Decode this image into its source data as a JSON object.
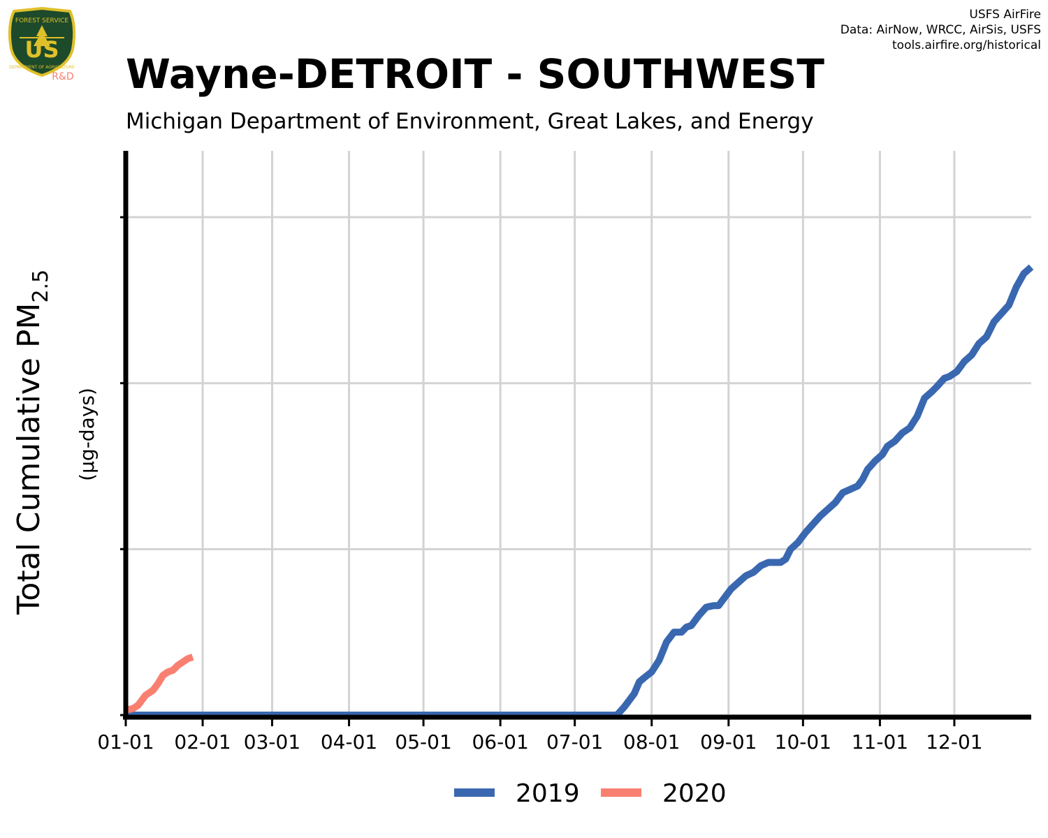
{
  "header": {
    "title": "Wayne-DETROIT - SOUTHWEST",
    "subtitle": "Michigan Department of Environment, Great Lakes, and Energy",
    "credits": [
      "USFS AirFire",
      "Data: AirNow, WRCC, AirSis, USFS",
      "tools.airfire.org/historical"
    ]
  },
  "logo": {
    "top_text": "FOREST SERVICE",
    "letters": "US",
    "bottom_text": "DEPARTMENT OF AGRICULTURE",
    "tag": "R&D"
  },
  "colors": {
    "series_2019": "#3a68b0",
    "series_2020": "#f98071",
    "grid": "#d3d3d3",
    "logo_green": "#1d4a2a",
    "logo_gold": "#e0c02a",
    "rd": "#f98071"
  },
  "chart_data": {
    "type": "line",
    "ylabel_main": "Total Cumulative PM",
    "ylabel_sub": "2.5",
    "ylabel_units": "(µg-days)",
    "x_tick_labels": [
      "01-01",
      "02-01",
      "03-01",
      "04-01",
      "05-01",
      "06-01",
      "07-01",
      "08-01",
      "09-01",
      "10-01",
      "11-01",
      "12-01"
    ],
    "x_tick_days": [
      0,
      31,
      59,
      90,
      120,
      151,
      181,
      212,
      243,
      273,
      304,
      334
    ],
    "xlim": [
      0,
      365
    ],
    "ylim": [
      0,
      3400
    ],
    "y_grid": [
      0,
      1000,
      2000,
      3000
    ],
    "grid": true,
    "legend_position": "bottom",
    "series": [
      {
        "name": "2019",
        "points": [
          [
            0,
            0
          ],
          [
            60,
            0
          ],
          [
            120,
            0
          ],
          [
            180,
            0
          ],
          [
            198,
            0
          ],
          [
            201,
            50
          ],
          [
            205,
            130
          ],
          [
            207,
            200
          ],
          [
            209,
            225
          ],
          [
            212,
            260
          ],
          [
            215,
            330
          ],
          [
            218,
            440
          ],
          [
            221,
            500
          ],
          [
            224,
            500
          ],
          [
            226,
            530
          ],
          [
            228,
            540
          ],
          [
            231,
            600
          ],
          [
            234,
            650
          ],
          [
            237,
            660
          ],
          [
            239,
            660
          ],
          [
            241,
            700
          ],
          [
            244,
            760
          ],
          [
            247,
            800
          ],
          [
            250,
            840
          ],
          [
            253,
            860
          ],
          [
            256,
            900
          ],
          [
            259,
            920
          ],
          [
            262,
            920
          ],
          [
            264,
            920
          ],
          [
            266,
            940
          ],
          [
            268,
            1000
          ],
          [
            271,
            1040
          ],
          [
            274,
            1100
          ],
          [
            277,
            1150
          ],
          [
            280,
            1200
          ],
          [
            283,
            1240
          ],
          [
            286,
            1280
          ],
          [
            289,
            1340
          ],
          [
            292,
            1360
          ],
          [
            295,
            1380
          ],
          [
            297,
            1420
          ],
          [
            299,
            1480
          ],
          [
            302,
            1530
          ],
          [
            305,
            1570
          ],
          [
            307,
            1620
          ],
          [
            310,
            1650
          ],
          [
            313,
            1700
          ],
          [
            316,
            1730
          ],
          [
            319,
            1800
          ],
          [
            322,
            1910
          ],
          [
            325,
            1950
          ],
          [
            327,
            1980
          ],
          [
            330,
            2030
          ],
          [
            332,
            2040
          ],
          [
            335,
            2070
          ],
          [
            338,
            2130
          ],
          [
            341,
            2170
          ],
          [
            344,
            2240
          ],
          [
            347,
            2280
          ],
          [
            350,
            2370
          ],
          [
            353,
            2420
          ],
          [
            356,
            2470
          ],
          [
            359,
            2580
          ],
          [
            362,
            2660
          ],
          [
            365,
            2700
          ]
        ]
      },
      {
        "name": "2020",
        "points": [
          [
            0,
            30
          ],
          [
            3,
            40
          ],
          [
            5,
            60
          ],
          [
            8,
            120
          ],
          [
            11,
            150
          ],
          [
            13,
            190
          ],
          [
            15,
            240
          ],
          [
            17,
            260
          ],
          [
            19,
            270
          ],
          [
            21,
            300
          ],
          [
            23,
            320
          ],
          [
            25,
            340
          ],
          [
            27,
            350
          ]
        ]
      }
    ]
  }
}
